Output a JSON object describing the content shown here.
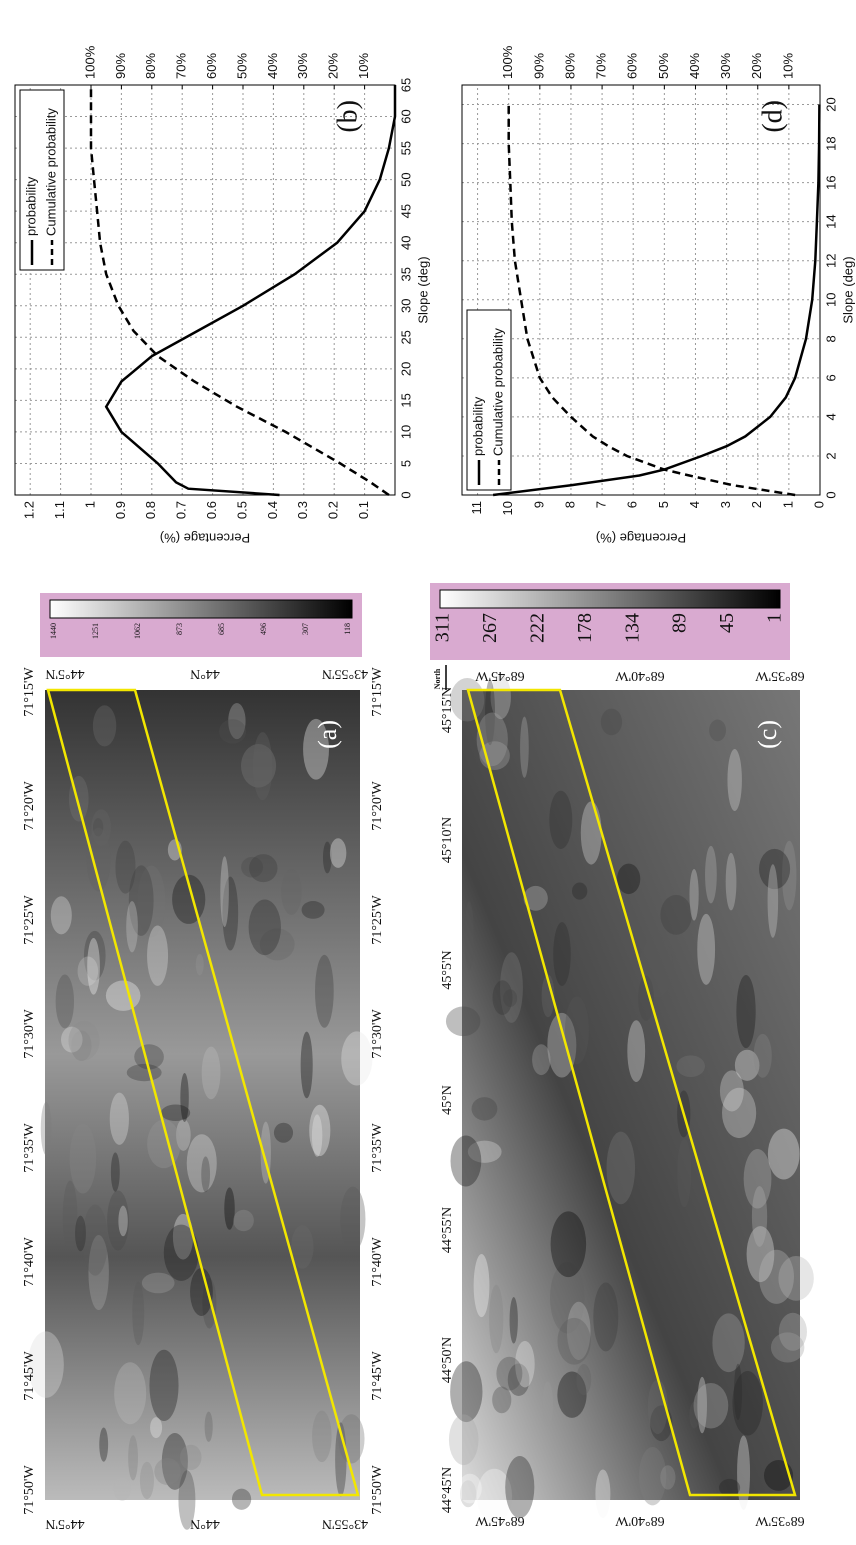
{
  "chart_data": [
    {
      "type": "line",
      "panel_label": "(b)",
      "xlabel": "Slope (deg)",
      "ylabel": "Percentage (%)",
      "x": [
        0,
        1,
        2,
        5,
        10,
        14,
        18,
        22,
        26,
        30,
        35,
        40,
        45,
        50,
        55,
        60,
        65
      ],
      "series": [
        {
          "name": "probability",
          "color": "#000000",
          "linestyle": "solid",
          "values": [
            0.38,
            0.68,
            0.72,
            0.78,
            0.9,
            0.95,
            0.9,
            0.8,
            0.65,
            0.5,
            0.33,
            0.19,
            0.1,
            0.05,
            0.02,
            0,
            0
          ]
        },
        {
          "name": "Cumulative probability",
          "color": "#000000",
          "linestyle": "dashed",
          "values": [
            0.02,
            0.05,
            0.08,
            0.18,
            0.36,
            0.52,
            0.66,
            0.78,
            0.86,
            0.91,
            0.95,
            0.97,
            0.98,
            0.99,
            1,
            1,
            1
          ]
        }
      ],
      "xlim": [
        0,
        65
      ],
      "xticks": [
        0,
        5,
        10,
        15,
        20,
        25,
        30,
        35,
        40,
        45,
        50,
        55,
        60,
        65
      ],
      "ylim": [
        0,
        1.25
      ],
      "yticks": [
        0.1,
        0.2,
        0.3,
        0.4,
        0.5,
        0.6,
        0.7,
        0.8,
        0.9,
        1,
        1.1,
        1.2
      ],
      "y2lim": [
        0,
        125
      ],
      "y2ticks": [
        {
          "value": 10,
          "label": "10%"
        },
        {
          "value": 20,
          "label": "20%"
        },
        {
          "value": 30,
          "label": "30%"
        },
        {
          "value": 40,
          "label": "40%"
        },
        {
          "value": 50,
          "label": "50%"
        },
        {
          "value": 60,
          "label": "60%"
        },
        {
          "value": 70,
          "label": "70%"
        },
        {
          "value": 80,
          "label": "80%"
        },
        {
          "value": 90,
          "label": "90%"
        },
        {
          "value": 100,
          "label": "100%"
        }
      ],
      "grid": true,
      "legend": "upper right"
    },
    {
      "type": "line",
      "panel_label": "(d)",
      "xlabel": "Slope (deg)",
      "ylabel": "Percentage (%)",
      "x": [
        0,
        0.5,
        1,
        1.3,
        2,
        2.5,
        3,
        4,
        5,
        6,
        8,
        10,
        12,
        14,
        16,
        18,
        20
      ],
      "series": [
        {
          "name": "probability",
          "color": "#000000",
          "linestyle": "solid",
          "values": [
            10.5,
            8,
            5.8,
            5,
            3.8,
            3,
            2.4,
            1.6,
            1.1,
            0.8,
            0.45,
            0.25,
            0.15,
            0.1,
            0.05,
            0.03,
            0.02
          ]
        },
        {
          "name": "Cumulative probability",
          "color": "#000000",
          "linestyle": "dashed",
          "values": [
            0.8,
            2.8,
            4.2,
            5,
            6.2,
            6.8,
            7.3,
            8,
            8.6,
            9,
            9.4,
            9.6,
            9.8,
            9.9,
            9.95,
            10,
            10
          ]
        }
      ],
      "xlim": [
        0,
        21
      ],
      "xticks": [
        0,
        2,
        4,
        6,
        8,
        10,
        12,
        14,
        16,
        18,
        20
      ],
      "ylim": [
        0,
        11.5
      ],
      "yticks": [
        0,
        1,
        2,
        3,
        4,
        5,
        6,
        7,
        8,
        9,
        10,
        11
      ],
      "y2lim": [
        0,
        115
      ],
      "y2ticks": [
        {
          "value": 10,
          "label": "10%"
        },
        {
          "value": 20,
          "label": "20%"
        },
        {
          "value": 30,
          "label": "30%"
        },
        {
          "value": 40,
          "label": "40%"
        },
        {
          "value": 50,
          "label": "50%"
        },
        {
          "value": 60,
          "label": "60%"
        },
        {
          "value": 70,
          "label": "70%"
        },
        {
          "value": 80,
          "label": "80%"
        },
        {
          "value": 90,
          "label": "90%"
        },
        {
          "value": 100,
          "label": "100%"
        }
      ],
      "grid": true,
      "legend": "upper left"
    }
  ],
  "maps": [
    {
      "panel_label": "(a)",
      "lon_labels": [
        "71°50'W",
        "71°45'W",
        "71°40'W",
        "71°35'W",
        "71°30'W",
        "71°25'W",
        "71°20'W",
        "71°15'W"
      ],
      "lat_labels": [
        "44°5'N",
        "44°N",
        "43°55'N"
      ],
      "colorbar_ticks": [
        1440,
        1251,
        1062,
        873,
        685,
        496,
        307,
        118
      ]
    },
    {
      "panel_label": "(c)",
      "north": "North",
      "lat_labels": [
        "44°45'N",
        "44°50'N",
        "44°55'N",
        "45°N",
        "45°5'N",
        "45°10'N",
        "45°15'N"
      ],
      "lon_labels": [
        "68°45'W",
        "68°40'W",
        "68°35'W"
      ],
      "colorbar_ticks": [
        311,
        267,
        222,
        178,
        134,
        89,
        45,
        1
      ]
    }
  ]
}
